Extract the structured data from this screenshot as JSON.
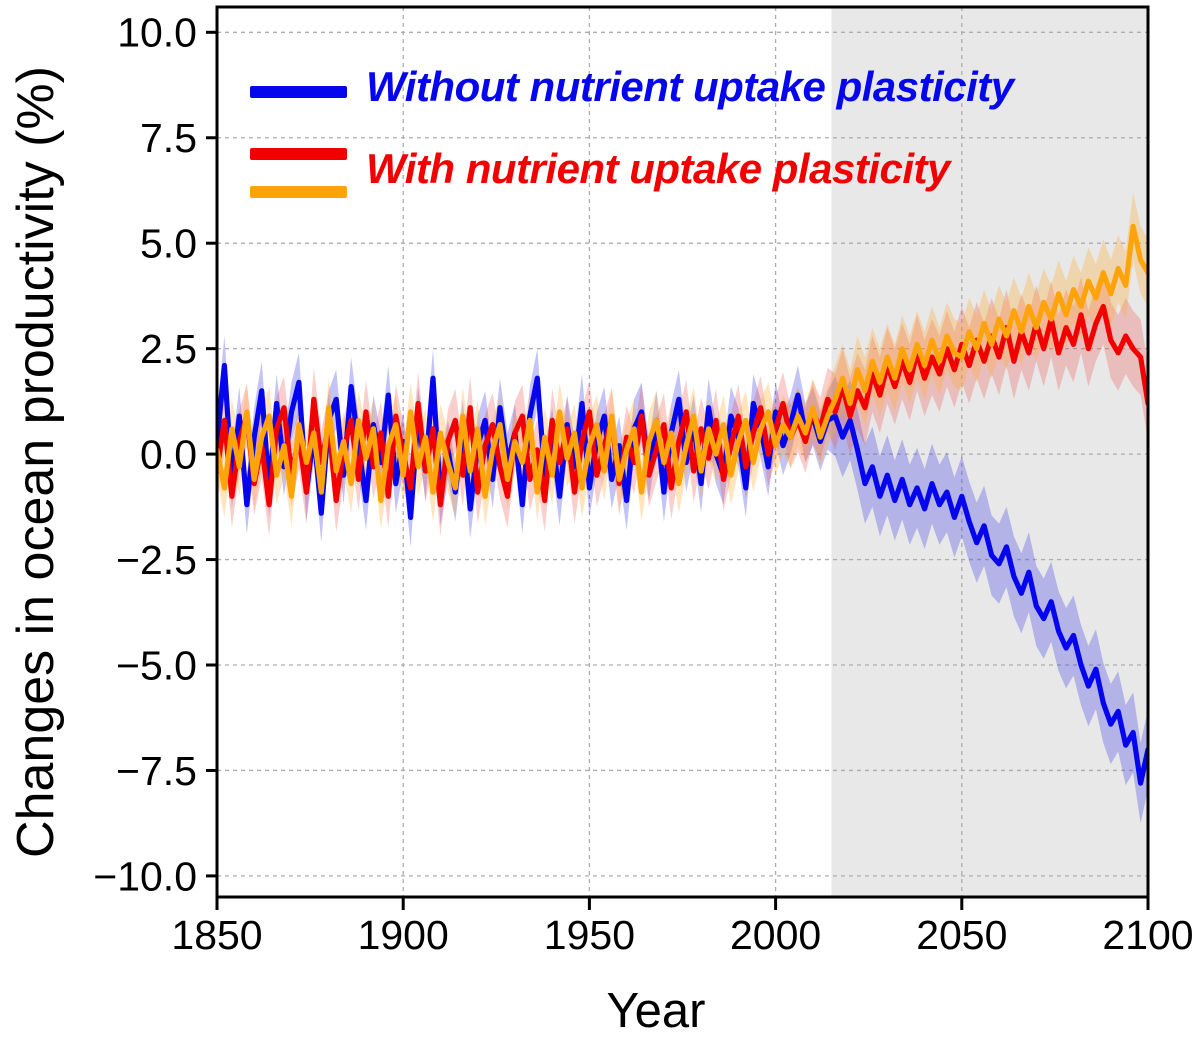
{
  "chart_data": {
    "type": "line",
    "title": "",
    "xlabel": "Year",
    "ylabel": "Changes in ocean productivity (%)",
    "xlim": [
      1850,
      2100
    ],
    "ylim": [
      -10.5,
      10.6
    ],
    "xticks": [
      1850,
      1900,
      1950,
      2000,
      2050,
      2100
    ],
    "xtick_labels": [
      "1850",
      "1900",
      "1950",
      "2000",
      "2050",
      "2100"
    ],
    "yticks": [
      10.0,
      7.5,
      5.0,
      2.5,
      0.0,
      -2.5,
      -5.0,
      -7.5,
      -10.0
    ],
    "ytick_labels": [
      "10.0",
      "7.5",
      "5.0",
      "2.5",
      "0.0",
      "−2.5",
      "−5.0",
      "−7.5",
      "−10.0"
    ],
    "grid": true,
    "grid_color": "#adadad",
    "legend_position": "upper-left",
    "shaded_region": {
      "x_start": 2015,
      "x_end": 2100,
      "color": "#e8e8e8"
    },
    "legend": [
      {
        "label": "Without nutrient uptake plasticity",
        "color": "#0505EE"
      },
      {
        "label": "With nutrient uptake plasticity",
        "color": "#F20000",
        "color2": "#FFA30A"
      }
    ],
    "x_start": 1850,
    "x_step": 2,
    "series": [
      {
        "key": "blue",
        "name": "Without nutrient uptake plasticity",
        "color": "#0505EE",
        "band_color": "rgba(55,55,230,0.30)",
        "band_halfwidth_hist": 0.7,
        "band_halfwidth_future": 0.95,
        "values": [
          0.3,
          2.1,
          -0.6,
          0.9,
          -1.2,
          0.4,
          1.5,
          -0.8,
          1.2,
          -0.3,
          1.0,
          1.7,
          -0.9,
          0.5,
          -1.4,
          0.8,
          1.3,
          -0.5,
          1.6,
          0.2,
          -1.1,
          0.7,
          -0.2,
          1.4,
          -0.7,
          0.3,
          -1.5,
          0.9,
          -0.4,
          1.8,
          -1.0,
          0.1,
          -0.9,
          0.6,
          -1.3,
          0.2,
          0.8,
          -0.6,
          1.1,
          -0.2,
          0.5,
          -1.2,
          0.9,
          1.8,
          -0.5,
          0.4,
          -1.0,
          0.7,
          -0.3,
          1.2,
          -0.8,
          0.3,
          0.9,
          -0.6,
          0.2,
          -1.1,
          0.6,
          1.0,
          -0.4,
          0.8,
          -0.9,
          0.5,
          1.3,
          -0.2,
          0.7,
          -0.7,
          1.1,
          0.0,
          -0.5,
          0.9,
          0.4,
          -0.8,
          1.2,
          0.6,
          -0.3,
          1.0,
          0.2,
          0.7,
          1.4,
          0.5,
          0.9,
          0.3,
          0.8,
          0.9,
          0.4,
          0.8,
          0.1,
          -0.7,
          -0.3,
          -1.0,
          -0.5,
          -1.1,
          -0.6,
          -1.2,
          -0.8,
          -1.3,
          -0.7,
          -1.2,
          -0.9,
          -1.5,
          -1.0,
          -1.6,
          -2.1,
          -1.7,
          -2.4,
          -2.6,
          -2.2,
          -2.9,
          -3.3,
          -2.8,
          -3.6,
          -3.9,
          -3.5,
          -4.2,
          -4.6,
          -4.3,
          -5.0,
          -5.5,
          -5.1,
          -5.9,
          -6.4,
          -6.1,
          -6.9,
          -6.6,
          -7.8,
          -7.0
        ]
      },
      {
        "key": "red",
        "name": "With nutrient uptake plasticity",
        "color": "#F20000",
        "band_color": "rgba(240,60,60,0.25)",
        "band_halfwidth_hist": 0.75,
        "band_halfwidth_future": 0.9,
        "values": [
          -0.4,
          0.8,
          -1.0,
          0.3,
          0.9,
          -0.7,
          0.2,
          -1.2,
          0.6,
          1.1,
          -0.5,
          0.4,
          -0.9,
          1.3,
          -0.2,
          0.7,
          -1.1,
          0.1,
          0.8,
          -0.6,
          1.0,
          -0.3,
          0.5,
          -1.0,
          0.9,
          0.0,
          -0.8,
          1.2,
          -0.4,
          0.6,
          -1.2,
          0.3,
          0.8,
          -0.5,
          1.1,
          -0.9,
          0.2,
          0.7,
          -0.3,
          -1.0,
          0.5,
          0.9,
          -0.6,
          0.1,
          -1.1,
          0.8,
          -0.2,
          0.6,
          -0.9,
          0.3,
          1.0,
          -0.5,
          0.2,
          0.8,
          -0.7,
          0.4,
          -0.2,
          0.9,
          -0.5,
          0.1,
          0.7,
          -0.8,
          0.3,
          1.0,
          -0.4,
          0.6,
          -0.1,
          0.8,
          -0.6,
          0.2,
          0.9,
          -0.3,
          0.5,
          1.1,
          0.0,
          0.6,
          1.2,
          0.4,
          0.8,
          0.3,
          1.0,
          0.6,
          1.3,
          1.0,
          1.6,
          0.9,
          1.5,
          1.1,
          1.9,
          1.4,
          2.1,
          1.6,
          2.2,
          1.7,
          2.4,
          1.8,
          2.3,
          1.9,
          2.5,
          2.0,
          2.6,
          2.1,
          2.7,
          2.2,
          2.8,
          2.3,
          3.0,
          2.2,
          2.9,
          2.4,
          3.1,
          2.5,
          3.2,
          2.4,
          3.0,
          2.6,
          3.3,
          2.5,
          3.1,
          3.5,
          2.7,
          2.4,
          2.8,
          2.5,
          2.3,
          1.2
        ]
      },
      {
        "key": "orange",
        "name": "With nutrient uptake plasticity",
        "color": "#FFA30A",
        "band_color": "rgba(255,170,40,0.30)",
        "band_halfwidth_hist": 0.7,
        "band_halfwidth_future": 0.8,
        "values": [
          0.1,
          -0.8,
          0.6,
          -0.3,
          1.0,
          -0.6,
          0.4,
          0.9,
          -0.5,
          0.2,
          -1.0,
          0.7,
          -0.2,
          0.5,
          -0.9,
          1.1,
          -0.4,
          0.3,
          -0.7,
          0.8,
          -0.1,
          0.6,
          -1.1,
          0.2,
          0.7,
          -0.5,
          1.0,
          -0.3,
          0.4,
          -0.9,
          0.5,
          -0.2,
          -0.8,
          0.9,
          -0.4,
          0.6,
          -1.0,
          0.1,
          0.7,
          -0.6,
          0.3,
          -0.2,
          0.8,
          -0.9,
          0.4,
          -0.5,
          1.0,
          -0.1,
          0.5,
          -0.8,
          0.2,
          0.7,
          -0.4,
          0.9,
          -0.6,
          0.1,
          0.6,
          -0.9,
          0.3,
          0.8,
          -0.2,
          0.5,
          -0.7,
          0.2,
          0.9,
          -0.4,
          0.6,
          0.0,
          0.7,
          -0.5,
          0.3,
          0.8,
          -0.2,
          0.6,
          1.0,
          0.2,
          0.7,
          0.4,
          0.9,
          0.5,
          1.1,
          0.4,
          0.9,
          1.3,
          1.8,
          1.2,
          2.0,
          1.5,
          2.2,
          1.7,
          2.3,
          1.8,
          2.5,
          2.0,
          2.6,
          2.1,
          2.7,
          2.2,
          2.8,
          2.4,
          2.3,
          2.9,
          2.5,
          3.1,
          2.6,
          3.2,
          2.8,
          3.4,
          2.9,
          3.5,
          3.0,
          3.6,
          3.2,
          3.8,
          3.3,
          3.9,
          3.5,
          4.1,
          3.7,
          4.3,
          3.8,
          4.4,
          4.0,
          5.4,
          4.6,
          4.3
        ]
      }
    ]
  }
}
